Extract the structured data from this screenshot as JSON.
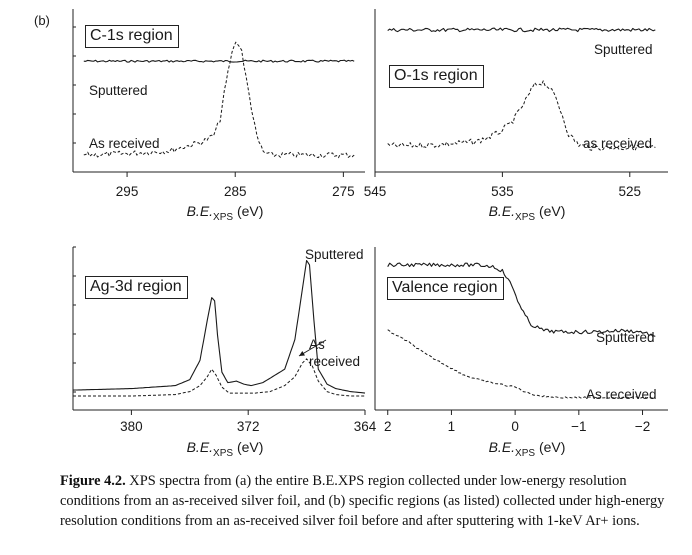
{
  "panel_tag": "(b)",
  "caption": {
    "label": "Figure 4.2.",
    "text": "XPS spectra from (a) the entire B.E.XPS region collected under low-energy resolution conditions from an as-received silver foil, and (b) specific regions (as listed) collected under high-energy resolution conditions from an as-received silver foil before and after sputtering with 1-keV Ar+ ions."
  },
  "chart_data": [
    {
      "type": "line",
      "region_label": "C-1s region",
      "xlabel": "B.E.XPS (eV)",
      "xlim": [
        300,
        273
      ],
      "xticks": [
        295,
        285,
        275
      ],
      "xtick_labels": [
        "295",
        "285",
        "275"
      ],
      "ylim": [
        0,
        100
      ],
      "series": [
        {
          "name": "Sputtered",
          "style": "solid",
          "x": [
            299,
            295,
            290,
            287,
            285,
            283,
            280,
            276,
            274
          ],
          "y": [
            69,
            69,
            69,
            69,
            69,
            69,
            69,
            69,
            69
          ]
        },
        {
          "name": "As received",
          "style": "dashed",
          "x": [
            299,
            295,
            291,
            289,
            288,
            287,
            286.4,
            286,
            285.5,
            285.1,
            284.8,
            284.4,
            284,
            283.5,
            283,
            282.4,
            281.8,
            281,
            279,
            276,
            274
          ],
          "y": [
            6,
            7,
            9,
            13,
            15,
            19,
            30,
            48,
            68,
            80,
            82,
            76,
            58,
            38,
            18,
            8,
            6,
            6,
            6,
            6,
            6
          ]
        }
      ]
    },
    {
      "type": "line",
      "region_label": "O-1s region",
      "xlabel": "B.E.XPS (eV)",
      "xlim": [
        545,
        522
      ],
      "xticks": [
        545,
        535,
        525
      ],
      "xtick_labels": [
        "545",
        "535",
        "525"
      ],
      "ylim": [
        0,
        100
      ],
      "series": [
        {
          "name": "Sputtered",
          "style": "solid",
          "x": [
            544,
            539,
            535,
            531,
            527,
            523
          ],
          "y": [
            90,
            90,
            90,
            90,
            90,
            90
          ]
        },
        {
          "name": "as received",
          "style": "dashed",
          "x": [
            544,
            540,
            537,
            535.5,
            534.5,
            534,
            533.5,
            533,
            532.6,
            532.2,
            531.8,
            531.3,
            530.8,
            530.3,
            529.8,
            529,
            528,
            526,
            523
          ],
          "y": [
            12,
            13,
            15,
            20,
            26,
            31,
            38,
            45,
            52,
            54,
            55,
            51,
            44,
            33,
            20,
            13,
            11,
            11,
            11
          ]
        }
      ]
    },
    {
      "type": "line",
      "region_label": "Ag-3d region",
      "xlabel": "B.E.XPS (eV)",
      "xlim": [
        384,
        364
      ],
      "xticks": [
        380,
        372,
        364
      ],
      "xtick_labels": [
        "380",
        "372",
        "364"
      ],
      "ylim": [
        0,
        100
      ],
      "series": [
        {
          "name": "Sputtered",
          "style": "solid",
          "x": [
            384,
            380,
            377,
            376,
            375.3,
            374.8,
            374.5,
            374.3,
            374.1,
            373.8,
            373.4,
            372.8,
            372.3,
            371.8,
            371,
            369.5,
            368.8,
            368.3,
            368,
            367.8,
            367.5,
            367.2,
            366.6,
            366,
            365,
            364
          ],
          "y": [
            8,
            9,
            11,
            15,
            28,
            55,
            70,
            68,
            45,
            20,
            13,
            14,
            12,
            11,
            13,
            22,
            42,
            75,
            95,
            92,
            55,
            22,
            12,
            9,
            7,
            6
          ]
        },
        {
          "name": "As received",
          "style": "dashed",
          "x": [
            384,
            380,
            377,
            376,
            375.3,
            374.8,
            374.5,
            374.2,
            373.8,
            373.3,
            372.5,
            371.5,
            370.5,
            369.5,
            368.8,
            368.3,
            368,
            367.6,
            367.2,
            366.6,
            366,
            365,
            364
          ],
          "y": [
            4,
            4,
            5,
            7,
            11,
            17,
            22,
            18,
            10,
            6,
            6,
            6,
            7,
            11,
            17,
            26,
            29,
            24,
            14,
            7,
            5,
            4,
            4
          ]
        }
      ]
    },
    {
      "type": "line",
      "region_label": "Valence region",
      "xlabel": "B.E.XPS (eV)",
      "xlim": [
        2.2,
        -2.4
      ],
      "xticks": [
        2,
        1,
        0,
        -1,
        -2
      ],
      "xtick_labels": [
        "2",
        "1",
        "0",
        "−1",
        "−2"
      ],
      "ylim": [
        0,
        100
      ],
      "series": [
        {
          "name": "Sputtered",
          "style": "solid",
          "x": [
            2.0,
            1.5,
            1.0,
            0.6,
            0.35,
            0.2,
            0.05,
            -0.1,
            -0.25,
            -0.45,
            -0.7,
            -1.2,
            -1.7,
            -2.0,
            -2.2
          ],
          "y": [
            92,
            92,
            92,
            92,
            91,
            88,
            78,
            62,
            52,
            48,
            47,
            47,
            48,
            47,
            44
          ]
        },
        {
          "name": "As received",
          "style": "dashed",
          "x": [
            2.0,
            1.7,
            1.4,
            1.1,
            0.8,
            0.5,
            0.25,
            0.0,
            -0.2,
            -0.4,
            -0.7,
            -1.0,
            -1.5,
            -2.0,
            -2.2
          ],
          "y": [
            48,
            41,
            32,
            25,
            18,
            14,
            12,
            10,
            6,
            4,
            3,
            3,
            3,
            3,
            3
          ]
        }
      ]
    }
  ]
}
